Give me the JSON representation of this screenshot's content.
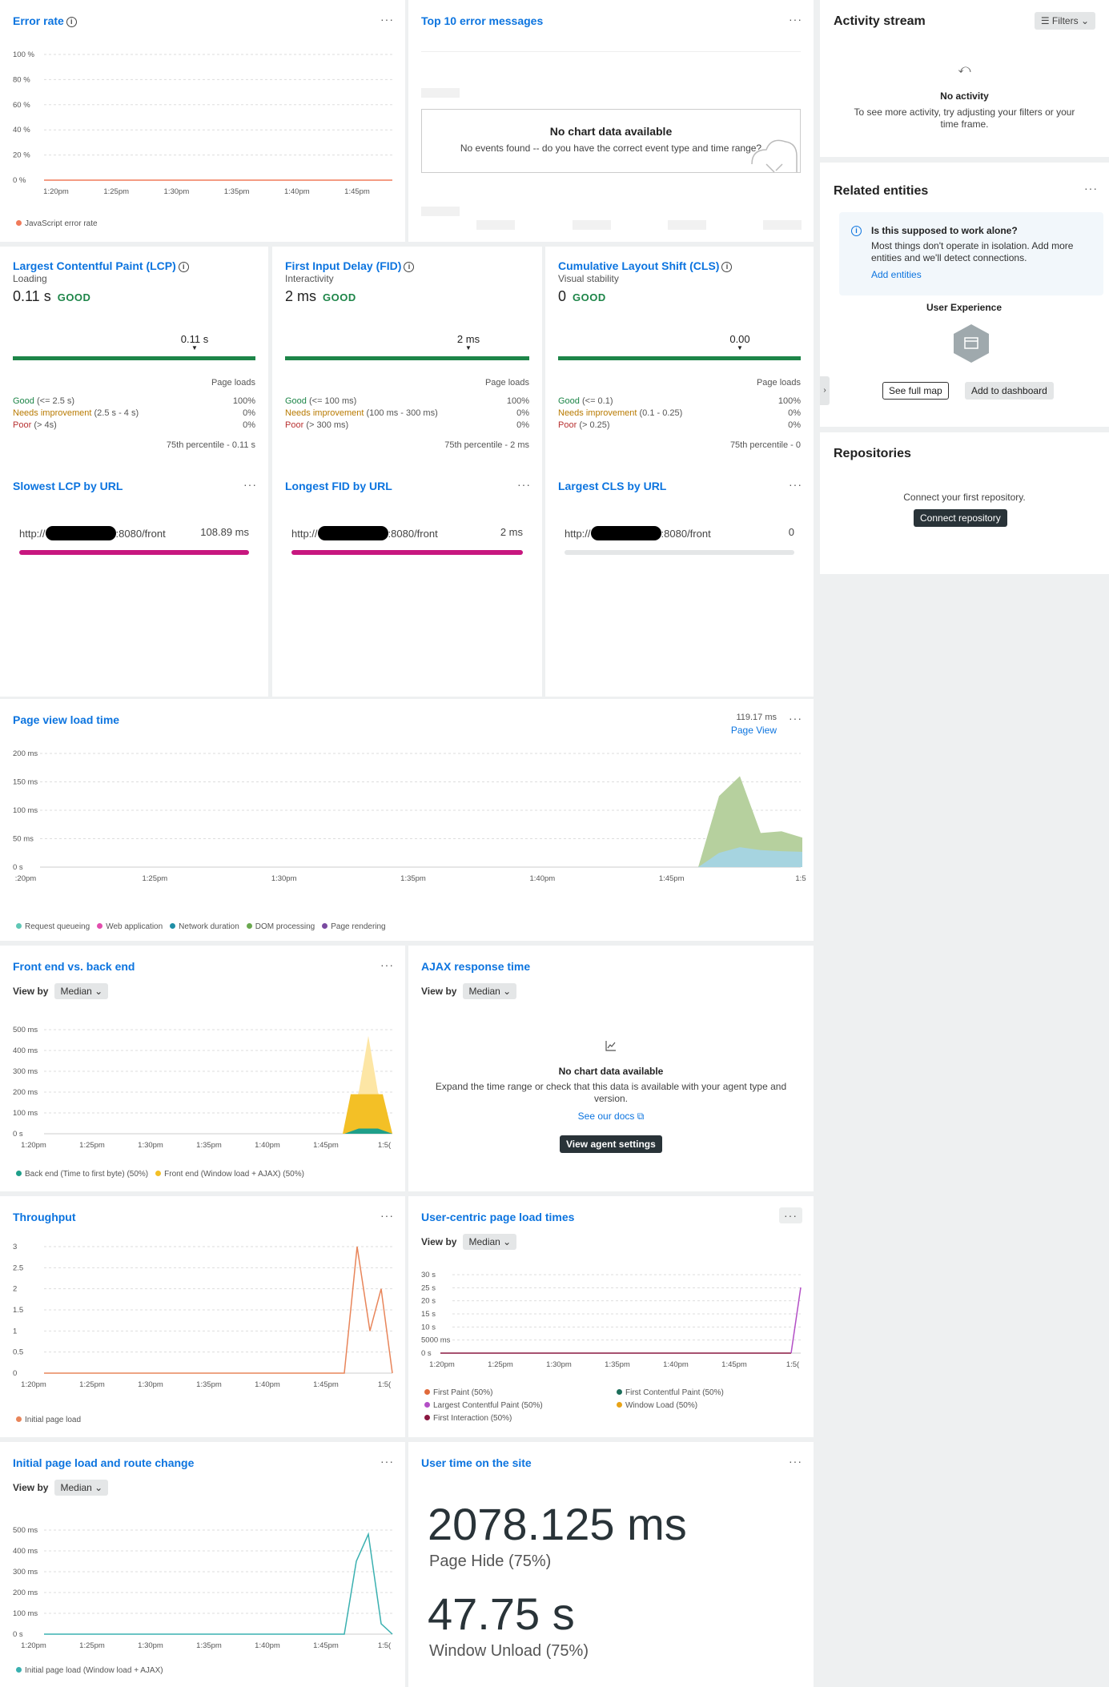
{
  "error_rate": {
    "title": "Error rate",
    "y_labels": [
      "100 %",
      "80 %",
      "60 %",
      "40 %",
      "20 %",
      "0 %"
    ],
    "x_labels": [
      "1:20pm",
      "1:25pm",
      "1:30pm",
      "1:35pm",
      "1:40pm",
      "1:45pm"
    ],
    "legend": "JavaScript error rate",
    "colors": {
      "series": "#f07a5a"
    },
    "chart_data": {
      "type": "line",
      "x": [
        "1:20pm",
        "1:25pm",
        "1:30pm",
        "1:35pm",
        "1:40pm",
        "1:45pm"
      ],
      "series": [
        {
          "name": "JavaScript error rate",
          "values": [
            0,
            0,
            0,
            0,
            0,
            0
          ]
        }
      ],
      "ylim": [
        0,
        100
      ]
    }
  },
  "top_errors": {
    "title": "Top 10 error messages",
    "empty_title": "No chart data available",
    "empty_text": "No events found -- do you have the correct event type and time range?"
  },
  "activity": {
    "title": "Activity stream",
    "filters": "Filters",
    "empty_title": "No activity",
    "empty_text": "To see more activity, try adjusting your filters or your time frame."
  },
  "related": {
    "title": "Related entities",
    "notice_title": "Is this supposed to work alone?",
    "notice_text": "Most things don't operate in isolation. Add more entities and we'll detect connections.",
    "add_link": "Add entities",
    "entity_label": "User Experience",
    "see_map": "See full map",
    "add_dashboard": "Add to dashboard"
  },
  "repos": {
    "title": "Repositories",
    "text": "Connect your first repository.",
    "button": "Connect repository"
  },
  "vitals": [
    {
      "title": "Largest Contentful Paint (LCP)",
      "subtitle": "Loading",
      "value": "0.11 s",
      "rating": "GOOD",
      "marker": "0.11 s",
      "page_loads": "Page loads",
      "good_label": "Good",
      "good_range": "(<= 2.5 s)",
      "good_pct": "100%",
      "needs_label": "Needs improvement",
      "needs_range": "(2.5 s - 4 s)",
      "needs_pct": "0%",
      "poor_label": "Poor",
      "poor_range": "(> 4s)",
      "poor_pct": "0%",
      "percentile": "75th percentile - 0.11 s"
    },
    {
      "title": "First Input Delay (FID)",
      "subtitle": "Interactivity",
      "value": "2 ms",
      "rating": "GOOD",
      "marker": "2 ms",
      "page_loads": "Page loads",
      "good_label": "Good",
      "good_range": "(<= 100 ms)",
      "good_pct": "100%",
      "needs_label": "Needs improvement",
      "needs_range": "(100 ms - 300 ms)",
      "needs_pct": "0%",
      "poor_label": "Poor",
      "poor_range": "(> 300 ms)",
      "poor_pct": "0%",
      "percentile": "75th percentile - 2 ms"
    },
    {
      "title": "Cumulative Layout Shift (CLS)",
      "subtitle": "Visual stability",
      "value": "0",
      "rating": "GOOD",
      "marker": "0.00",
      "page_loads": "Page loads",
      "good_label": "Good",
      "good_range": "(<= 0.1)",
      "good_pct": "100%",
      "needs_label": "Needs improvement",
      "needs_range": "(0.1 - 0.25)",
      "needs_pct": "0%",
      "poor_label": "Poor",
      "poor_range": "(> 0.25)",
      "poor_pct": "0%",
      "percentile": "75th percentile - 0"
    }
  ],
  "slowest": [
    {
      "title": "Slowest LCP by URL",
      "url_prefix": "http://",
      "url_suffix": ":8080/front",
      "value": "108.89 ms"
    },
    {
      "title": "Longest FID by URL",
      "url_prefix": "http://",
      "url_suffix": ":8080/front",
      "value": "2 ms"
    },
    {
      "title": "Largest CLS by URL",
      "url_prefix": "http://",
      "url_suffix": ":8080/front",
      "value": "0"
    }
  ],
  "page_view": {
    "title": "Page view load time",
    "summary_value": "119.17 ms",
    "summary_label": "Page View",
    "y_labels": [
      "200 ms",
      "150 ms",
      "100 ms",
      "50 ms",
      "0 s"
    ],
    "x_labels": [
      ":20pm",
      "1:25pm",
      "1:30pm",
      "1:35pm",
      "1:40pm",
      "1:45pm",
      "1:5"
    ],
    "legend": [
      "Request queueing",
      "Web application",
      "Network duration",
      "DOM processing",
      "Page rendering"
    ],
    "legend_colors": [
      "#5fc7b5",
      "#e24dad",
      "#1f8ea6",
      "#6aa84f",
      "#7a4aa0"
    ],
    "colors": {
      "dom": "#b6d09e",
      "network": "#a6d4e0"
    },
    "chart_data": {
      "type": "area",
      "x": [
        "1:45pm",
        "1:46pm",
        "1:47pm",
        "1:48pm",
        "1:49pm",
        "1:50pm"
      ],
      "series": [
        {
          "name": "Network duration",
          "values": [
            0,
            25,
            35,
            30,
            28,
            27
          ]
        },
        {
          "name": "DOM processing",
          "values": [
            0,
            100,
            125,
            30,
            35,
            25
          ]
        }
      ],
      "ylim": [
        0,
        200
      ]
    }
  },
  "front_back": {
    "title": "Front end vs. back end",
    "view_by": "View by",
    "select": "Median",
    "y_labels": [
      "500 ms",
      "400 ms",
      "300 ms",
      "200 ms",
      "100 ms",
      "0 s"
    ],
    "x_labels": [
      "1:20pm",
      "1:25pm",
      "1:30pm",
      "1:35pm",
      "1:40pm",
      "1:45pm",
      "1:5("
    ],
    "legend": [
      "Back end (Time to first byte) (50%)",
      "Front end (Window load + AJAX) (50%)"
    ],
    "legend_colors": [
      "#1f9f8a",
      "#f3c026"
    ],
    "chart_data": {
      "type": "area",
      "series": [
        {
          "name": "Back end (Time to first byte) (50%)",
          "values": [
            0,
            0,
            0,
            0,
            0,
            0,
            30
          ]
        },
        {
          "name": "Front end (Window load + AJAX) (50%)",
          "values": [
            0,
            0,
            0,
            0,
            0,
            0,
            480
          ]
        }
      ],
      "ylim": [
        0,
        500
      ]
    }
  },
  "ajax": {
    "title": "AJAX response time",
    "view_by": "View by",
    "select": "Median",
    "empty_title": "No chart data available",
    "empty_text": "Expand the time range or check that this data is available with your agent type and version.",
    "docs_link": "See our docs",
    "button": "View agent settings"
  },
  "throughput": {
    "title": "Throughput",
    "y_labels": [
      "3",
      "2.5",
      "2",
      "1.5",
      "1",
      "0.5",
      "0"
    ],
    "x_labels": [
      "1:20pm",
      "1:25pm",
      "1:30pm",
      "1:35pm",
      "1:40pm",
      "1:45pm",
      "1:5("
    ],
    "legend": "Initial page load",
    "colors": {
      "series": "#e8855a"
    },
    "chart_data": {
      "type": "line",
      "series": [
        {
          "name": "Initial page load",
          "values": [
            0,
            0,
            0,
            0,
            0,
            0,
            0,
            3,
            1,
            2,
            0
          ]
        }
      ],
      "ylim": [
        0,
        3
      ]
    }
  },
  "user_centric": {
    "title": "User-centric page load times",
    "view_by": "View by",
    "select": "Median",
    "y_labels": [
      "30 s",
      "25 s",
      "20 s",
      "15 s",
      "10 s",
      "5000 ms",
      "0 s"
    ],
    "x_labels": [
      "1:20pm",
      "1:25pm",
      "1:30pm",
      "1:35pm",
      "1:40pm",
      "1:45pm",
      "1:5("
    ],
    "legend": [
      "First Paint (50%)",
      "First Contentful Paint (50%)",
      "Largest Contentful Paint (50%)",
      "Window Load (50%)",
      "First Interaction (50%)"
    ],
    "legend_colors": [
      "#e06a3b",
      "#1c6e5a",
      "#b34fc6",
      "#e8a317",
      "#8a1840"
    ],
    "chart_data": {
      "type": "line",
      "series": [
        {
          "name": "Largest Contentful Paint (50%)",
          "values": [
            0,
            0,
            0,
            0,
            0,
            0,
            25
          ]
        }
      ],
      "ylim": [
        0,
        30
      ]
    }
  },
  "route_change": {
    "title": "Initial page load and route change",
    "view_by": "View by",
    "select": "Median",
    "y_labels": [
      "500 ms",
      "400 ms",
      "300 ms",
      "200 ms",
      "100 ms",
      "0 s"
    ],
    "x_labels": [
      "1:20pm",
      "1:25pm",
      "1:30pm",
      "1:35pm",
      "1:40pm",
      "1:45pm",
      "1:5("
    ],
    "legend": "Initial page load (Window load + AJAX)",
    "colors": {
      "series": "#3ab0b0"
    },
    "chart_data": {
      "type": "line",
      "series": [
        {
          "name": "Initial page load (Window load + AJAX)",
          "values": [
            0,
            0,
            0,
            0,
            0,
            0,
            0,
            350,
            480,
            50,
            0
          ]
        }
      ],
      "ylim": [
        0,
        500
      ]
    }
  },
  "user_time": {
    "title": "User time on the site",
    "value1": "2078.125 ms",
    "label1": "Page Hide (75%)",
    "value2": "47.75 s",
    "label2": "Window Unload (75%)"
  }
}
